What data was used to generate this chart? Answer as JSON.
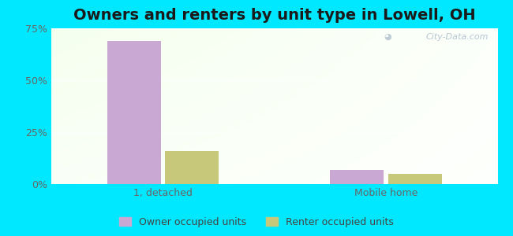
{
  "title": "Owners and renters by unit type in Lowell, OH",
  "categories": [
    "1, detached",
    "Mobile home"
  ],
  "owner_values": [
    69.0,
    7.0
  ],
  "renter_values": [
    16.0,
    5.0
  ],
  "owner_color": "#c9a8d4",
  "renter_color": "#c8c87a",
  "ylim": [
    0,
    75
  ],
  "yticks": [
    0,
    25,
    50,
    75
  ],
  "ytick_labels": [
    "0%",
    "25%",
    "50%",
    "75%"
  ],
  "bar_width": 0.12,
  "group_centers": [
    0.25,
    0.75
  ],
  "legend_owner": "Owner occupied units",
  "legend_renter": "Renter occupied units",
  "bg_outer": "#00e8ff",
  "watermark": "City-Data.com",
  "title_fontsize": 14,
  "label_fontsize": 9,
  "tick_fontsize": 9
}
